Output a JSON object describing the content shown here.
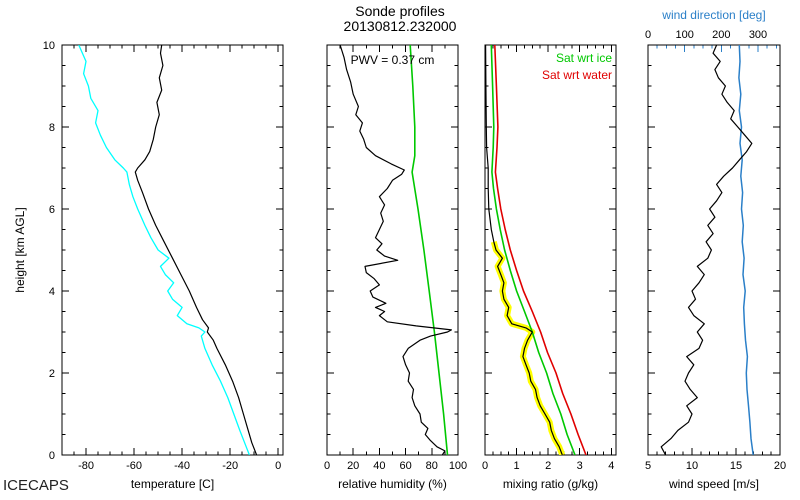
{
  "title": "Sonde profiles",
  "subtitle": "20130812.232000",
  "footer_label": "ICECAPS",
  "chart_data": [
    {
      "id": "temperature",
      "type": "line",
      "xlabel": "temperature [C]",
      "ylabel": "height [km AGL]",
      "xlim": [
        -90,
        2
      ],
      "xticks": [
        -80,
        -60,
        -40,
        -20,
        0
      ],
      "xminor": 4,
      "ylim": [
        0,
        10
      ],
      "yticks": [
        0,
        2,
        4,
        6,
        8,
        10
      ],
      "yminor": 4,
      "show_ytick_labels": true,
      "series": [
        {
          "name": "dewpoint",
          "color": "#00ffff",
          "width": 1.3,
          "h": [
            0,
            0.3,
            0.6,
            1.0,
            1.4,
            1.8,
            2.2,
            2.6,
            2.9,
            3.0,
            3.1,
            3.2,
            3.4,
            3.6,
            3.8,
            4.0,
            4.2,
            4.4,
            4.6,
            4.8,
            5.0,
            5.3,
            5.6,
            6.0,
            6.3,
            6.6,
            6.9,
            7.0,
            7.2,
            7.5,
            7.8,
            8.1,
            8.4,
            8.7,
            9.0,
            9.3,
            9.6,
            10.0
          ],
          "v": [
            -12,
            -14,
            -16,
            -18.5,
            -21,
            -24,
            -27.5,
            -30.5,
            -32,
            -30.5,
            -33,
            -38,
            -42,
            -40,
            -44,
            -46,
            -43.5,
            -47,
            -49,
            -45.5,
            -50,
            -53,
            -55.5,
            -58.5,
            -60.5,
            -62,
            -63,
            -64.5,
            -68,
            -71.5,
            -74,
            -76,
            -75,
            -78,
            -79,
            -81,
            -80,
            -83
          ]
        },
        {
          "name": "temperature",
          "color": "#000000",
          "width": 1.2,
          "h": [
            0,
            0.3,
            0.6,
            1.0,
            1.4,
            1.8,
            2.2,
            2.6,
            2.8,
            3.0,
            3.1,
            3.3,
            3.6,
            4.0,
            4.4,
            4.8,
            5.2,
            5.6,
            6.0,
            6.4,
            6.7,
            6.9,
            7.0,
            7.2,
            7.4,
            7.7,
            8.0,
            8.3,
            8.6,
            8.9,
            9.2,
            9.5,
            9.8,
            10.0
          ],
          "v": [
            -9,
            -11,
            -12.5,
            -14.5,
            -16.5,
            -19,
            -22,
            -25.5,
            -27,
            -29.5,
            -29,
            -31.5,
            -34,
            -37,
            -40.5,
            -44,
            -47.5,
            -51,
            -54,
            -56.5,
            -58.5,
            -59.5,
            -58.5,
            -55.5,
            -53.5,
            -52,
            -51,
            -49.5,
            -50.5,
            -48.5,
            -49.5,
            -48,
            -49,
            -48.5
          ]
        }
      ]
    },
    {
      "id": "relative-humidity",
      "type": "line",
      "xlabel": "relative humidity (%)",
      "annotation": "PWV = 0.37 cm",
      "xlim": [
        0,
        100
      ],
      "xticks": [
        0,
        20,
        40,
        60,
        80,
        100
      ],
      "xminor": 2,
      "ylim": [
        0,
        10
      ],
      "yticks": [
        0,
        2,
        4,
        6,
        8,
        10
      ],
      "yminor": 4,
      "show_ytick_labels": false,
      "series": [
        {
          "name": "rh-saturation-wrt-ice",
          "color": "#00c800",
          "width": 1.6,
          "h": [
            0,
            1,
            2,
            3,
            4,
            5,
            6,
            6.9,
            7.3,
            8,
            9,
            10
          ],
          "v": [
            92,
            89,
            85.5,
            82,
            78,
            74,
            69.5,
            65,
            67,
            67,
            65.5,
            63.5
          ]
        },
        {
          "name": "relative-humidity",
          "color": "#000000",
          "width": 1.2,
          "h": [
            0,
            0.1,
            0.2,
            0.35,
            0.5,
            0.65,
            0.8,
            1.0,
            1.2,
            1.4,
            1.6,
            1.8,
            2.0,
            2.2,
            2.4,
            2.6,
            2.8,
            2.9,
            3.0,
            3.05,
            3.15,
            3.25,
            3.4,
            3.5,
            3.6,
            3.7,
            3.85,
            4.0,
            4.15,
            4.3,
            4.45,
            4.6,
            4.75,
            4.85,
            5.0,
            5.15,
            5.3,
            5.5,
            5.7,
            5.9,
            6.1,
            6.3,
            6.5,
            6.7,
            6.85,
            6.95,
            7.1,
            7.3,
            7.5,
            7.7,
            7.9,
            8.1,
            8.3,
            8.5,
            8.8,
            9.1,
            9.4,
            9.7,
            10.0
          ],
          "v": [
            88,
            90,
            84,
            79,
            75,
            77,
            72,
            71,
            67,
            65,
            66,
            62,
            63,
            60,
            58,
            62,
            71,
            79,
            92,
            95,
            68,
            46,
            40,
            44,
            37,
            45,
            35,
            33,
            40,
            36,
            30,
            29,
            54,
            44,
            38,
            42,
            37,
            40,
            43,
            41,
            44,
            40,
            46,
            50,
            57,
            59,
            49,
            37,
            30,
            28,
            25,
            27,
            22,
            24,
            20,
            18,
            15,
            13,
            10
          ]
        }
      ]
    },
    {
      "id": "mixing-ratio",
      "type": "line",
      "xlabel": "mixing ratio (g/kg)",
      "legend": [
        {
          "label": "Sat wrt ice",
          "color": "#00c800"
        },
        {
          "label": "Sat wrt water",
          "color": "#e00000"
        }
      ],
      "xlim": [
        0,
        4.15
      ],
      "xticks": [
        0,
        1,
        2,
        3,
        4
      ],
      "xminor": 4,
      "ylim": [
        0,
        10
      ],
      "yticks": [
        0,
        2,
        4,
        6,
        8,
        10
      ],
      "yminor": 4,
      "show_ytick_labels": false,
      "series": [
        {
          "name": "saturation-mixing-ratio-ice",
          "color": "#00c800",
          "width": 1.6,
          "h": [
            0,
            0.5,
            1,
            1.5,
            2,
            2.5,
            3,
            3.5,
            4,
            4.5,
            5,
            5.5,
            6,
            6.5,
            6.9,
            7.5,
            8,
            9,
            10
          ],
          "v": [
            2.85,
            2.6,
            2.4,
            2.15,
            1.95,
            1.7,
            1.5,
            1.25,
            1.0,
            0.8,
            0.62,
            0.48,
            0.36,
            0.27,
            0.22,
            0.26,
            0.28,
            0.24,
            0.2
          ]
        },
        {
          "name": "saturation-mixing-ratio-water",
          "color": "#e00000",
          "width": 1.6,
          "h": [
            0,
            0.5,
            1,
            1.5,
            2,
            2.5,
            3,
            3.5,
            4,
            4.5,
            5,
            5.5,
            6,
            6.5,
            6.9,
            7.5,
            8,
            9,
            10
          ],
          "v": [
            3.2,
            2.95,
            2.72,
            2.46,
            2.25,
            1.98,
            1.76,
            1.5,
            1.22,
            1.0,
            0.8,
            0.64,
            0.5,
            0.4,
            0.33,
            0.38,
            0.41,
            0.36,
            0.31
          ]
        },
        {
          "name": "mixing-ratio",
          "color": "#000000",
          "width": 1.2,
          "halo": "#ffff00",
          "halo_hmax": 5.3,
          "h": [
            0,
            0.2,
            0.4,
            0.6,
            0.8,
            1.0,
            1.2,
            1.4,
            1.6,
            1.8,
            2.0,
            2.2,
            2.4,
            2.6,
            2.8,
            3.0,
            3.1,
            3.2,
            3.4,
            3.6,
            3.8,
            4.0,
            4.2,
            4.4,
            4.6,
            4.8,
            5.0,
            5.2,
            5.5,
            6.0,
            6.5,
            7.0,
            7.5,
            8.0,
            9.0,
            10.0
          ],
          "v": [
            2.45,
            2.35,
            2.2,
            2.1,
            2.05,
            1.9,
            1.75,
            1.65,
            1.6,
            1.45,
            1.4,
            1.3,
            1.2,
            1.25,
            1.35,
            1.5,
            1.3,
            0.85,
            0.7,
            0.75,
            0.6,
            0.55,
            0.6,
            0.5,
            0.4,
            0.55,
            0.35,
            0.28,
            0.2,
            0.12,
            0.1,
            0.1,
            0.05,
            0.04,
            0.03,
            0.02
          ]
        }
      ]
    },
    {
      "id": "wind",
      "type": "line",
      "xlabel": "wind speed [m/s]",
      "xlim": [
        5,
        20
      ],
      "xticks": [
        5,
        10,
        15,
        20
      ],
      "xminor": 5,
      "ylim": [
        0,
        10
      ],
      "yticks": [
        0,
        2,
        4,
        6,
        8,
        10
      ],
      "yminor": 4,
      "show_ytick_labels": false,
      "top_axis": {
        "label": "wind direction [deg]",
        "xlim": [
          0,
          360
        ],
        "xticks": [
          0,
          100,
          200,
          300
        ],
        "xminor": 4,
        "color": "#2a7fc8"
      },
      "series": [
        {
          "name": "wind-direction",
          "color": "#2a7fc8",
          "width": 1.5,
          "axis": "top",
          "h": [
            0,
            0.4,
            0.8,
            1.2,
            1.6,
            2.0,
            2.4,
            2.8,
            3.2,
            3.6,
            4.0,
            4.4,
            4.8,
            5.2,
            5.6,
            6.0,
            6.4,
            6.8,
            7.2,
            7.6,
            8.0,
            8.4,
            8.8,
            9.2,
            9.6,
            10.0
          ],
          "v": [
            287,
            281,
            278,
            274,
            270,
            268,
            271,
            266,
            263,
            261,
            265,
            259,
            262,
            257,
            260,
            255,
            258,
            253,
            257,
            251,
            255,
            249,
            253,
            248,
            251,
            249
          ]
        },
        {
          "name": "wind-speed",
          "color": "#000000",
          "width": 1.2,
          "h": [
            0,
            0.2,
            0.4,
            0.6,
            0.8,
            1,
            1.2,
            1.4,
            1.6,
            1.8,
            2,
            2.2,
            2.4,
            2.6,
            2.8,
            3,
            3.2,
            3.4,
            3.6,
            3.8,
            4,
            4.2,
            4.4,
            4.6,
            4.8,
            5,
            5.2,
            5.4,
            5.6,
            5.8,
            6,
            6.2,
            6.4,
            6.6,
            6.8,
            7,
            7.2,
            7.4,
            7.6,
            7.8,
            8,
            8.2,
            8.4,
            8.6,
            8.8,
            9,
            9.2,
            9.4,
            9.6,
            9.8,
            10
          ],
          "v": [
            7,
            6.5,
            7.6,
            8.4,
            9.6,
            10,
            9.4,
            10.6,
            9.8,
            9.2,
            9.6,
            10.2,
            9.4,
            10.8,
            11.2,
            10.6,
            11.4,
            10.2,
            9.6,
            10.4,
            10,
            10.8,
            11.4,
            10.6,
            11.8,
            12.2,
            11.6,
            12.4,
            11.8,
            12.6,
            12,
            12.8,
            13.4,
            12.8,
            13.6,
            14.6,
            15.4,
            16.2,
            16.8,
            16,
            15.2,
            14.4,
            14.8,
            14,
            13.4,
            13.8,
            13,
            12.6,
            13.2,
            12.4,
            12.8
          ]
        }
      ]
    }
  ]
}
